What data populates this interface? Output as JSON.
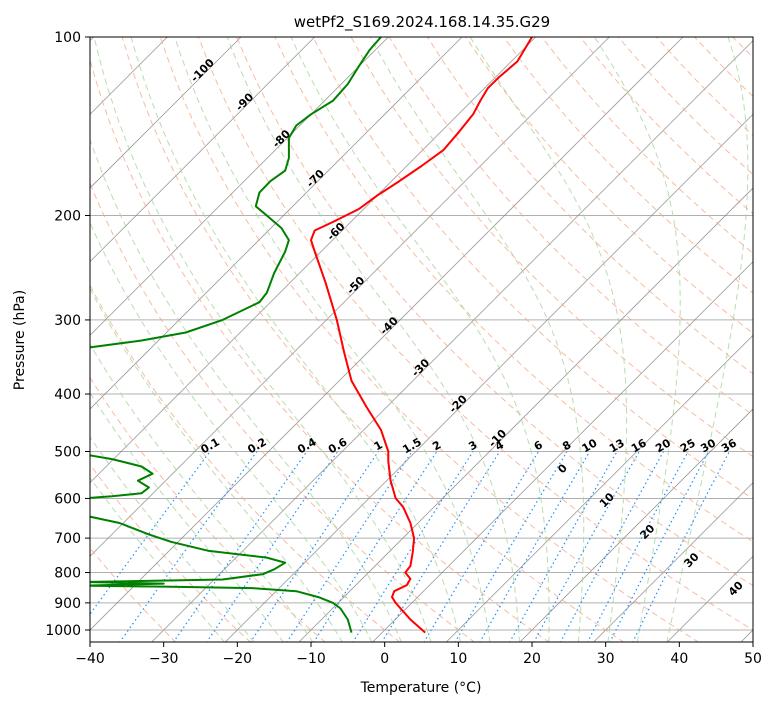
{
  "chart_data": {
    "type": "line",
    "subtype": "skew-t log-p sounding",
    "title": "wetPf2_S169.2024.168.14.35.G29",
    "xlabel": "Temperature (°C)",
    "ylabel": "Pressure (hPa)",
    "xlim": [
      -40,
      50
    ],
    "ylim": [
      1050,
      100
    ],
    "y_scale": "log",
    "grid": true,
    "x_ticks": [
      -40,
      -30,
      -20,
      -10,
      0,
      10,
      20,
      30,
      40,
      50
    ],
    "x_tick_labels": [
      "−40",
      "−30",
      "−20",
      "−10",
      "0",
      "10",
      "20",
      "30",
      "40",
      "50"
    ],
    "y_ticks": [
      1000,
      900,
      800,
      700,
      600,
      500,
      400,
      300,
      200,
      100
    ],
    "y_tick_labels": [
      "1000",
      "900",
      "800",
      "700",
      "600",
      "500",
      "400",
      "300",
      "200",
      "100"
    ],
    "colors": {
      "temperature": "#ff0000",
      "dewpoint": "#008000",
      "isotherm_labels": "#1f77b4",
      "mixing_ratio": "#1e90ff",
      "dry_adiabat": "#f4a582",
      "moist_adiabat": "#a6d49b",
      "skewed_isotherm": "#808080",
      "hodo_labels": "#d62728"
    },
    "isotherm_labels": [
      {
        "t": -100,
        "label": "-100"
      },
      {
        "t": -90,
        "label": "-90"
      },
      {
        "t": -80,
        "label": "-80"
      },
      {
        "t": -70,
        "label": "-70"
      },
      {
        "t": -60,
        "label": "-60"
      },
      {
        "t": -50,
        "label": "-50"
      },
      {
        "t": -40,
        "label": "-40"
      },
      {
        "t": -30,
        "label": "-30"
      },
      {
        "t": -20,
        "label": "-20"
      },
      {
        "t": -10,
        "label": "-10"
      }
    ],
    "mixing_ratio_labels": [
      "0.1",
      "0.2",
      "0.4",
      "0.6",
      "1",
      "1.5",
      "2",
      "3",
      "4",
      "6",
      "8",
      "10",
      "13",
      "16",
      "20",
      "25",
      "30",
      "36"
    ],
    "extra_labels": [
      "0",
      "10",
      "20",
      "30",
      "40"
    ],
    "series": [
      {
        "name": "",
        "role": "temperature",
        "points": [
          [
            5.5,
            1010
          ],
          [
            3.5,
            960
          ],
          [
            1.5,
            900
          ],
          [
            1.0,
            880
          ],
          [
            1.3,
            860
          ],
          [
            3.0,
            840
          ],
          [
            3.5,
            820
          ],
          [
            2.8,
            800
          ],
          [
            3.5,
            780
          ],
          [
            3.8,
            740
          ],
          [
            4.0,
            700
          ],
          [
            3.5,
            660
          ],
          [
            2.5,
            620
          ],
          [
            1.5,
            600
          ],
          [
            0.8,
            560
          ],
          [
            0.5,
            520
          ],
          [
            0.5,
            500
          ],
          [
            -0.5,
            460
          ],
          [
            -2.5,
            420
          ],
          [
            -4.5,
            380
          ],
          [
            -5.5,
            340
          ],
          [
            -6.5,
            300
          ],
          [
            -8.0,
            260
          ],
          [
            -9.5,
            230
          ],
          [
            -10.0,
            220
          ],
          [
            -9.5,
            212
          ],
          [
            -7.0,
            205
          ],
          [
            -3.5,
            195
          ],
          [
            -1.0,
            185
          ],
          [
            2.0,
            175
          ],
          [
            5.0,
            165
          ],
          [
            8.0,
            155
          ],
          [
            10.0,
            145
          ],
          [
            12.0,
            135
          ],
          [
            13.0,
            128
          ],
          [
            14.0,
            122
          ],
          [
            15.5,
            117
          ],
          [
            18.0,
            110
          ],
          [
            20.0,
            100
          ]
        ]
      },
      {
        "name": "",
        "role": "dewpoint",
        "points": [
          [
            -4.5,
            1010
          ],
          [
            -5.0,
            960
          ],
          [
            -6.0,
            920
          ],
          [
            -7.0,
            900
          ],
          [
            -9.0,
            880
          ],
          [
            -12.0,
            860
          ],
          [
            -18.0,
            850
          ],
          [
            -30.0,
            845
          ],
          [
            -41.0,
            842
          ],
          [
            -30.0,
            835
          ],
          [
            -41.0,
            830
          ],
          [
            -22.0,
            822
          ],
          [
            -16.5,
            805
          ],
          [
            -15.0,
            790
          ],
          [
            -13.5,
            770
          ],
          [
            -16.0,
            755
          ],
          [
            -24.0,
            735
          ],
          [
            -29.0,
            710
          ],
          [
            -32.0,
            690
          ],
          [
            -36.0,
            660
          ],
          [
            -41.0,
            640
          ],
          [
            -41.0,
            600
          ],
          [
            -37.0,
            595
          ],
          [
            -33.0,
            588
          ],
          [
            -32.0,
            575
          ],
          [
            -33.5,
            560
          ],
          [
            -31.5,
            545
          ],
          [
            -33.0,
            530
          ],
          [
            -37.0,
            515
          ],
          [
            -41.0,
            505
          ],
          [
            -41.0,
            335
          ],
          [
            -33.0,
            325
          ],
          [
            -27.0,
            315
          ],
          [
            -22.0,
            300
          ],
          [
            -17.0,
            280
          ],
          [
            -16.0,
            270
          ],
          [
            -15.0,
            250
          ],
          [
            -13.5,
            230
          ],
          [
            -13.0,
            220
          ],
          [
            -14.0,
            210
          ],
          [
            -16.0,
            200
          ],
          [
            -17.5,
            193
          ],
          [
            -17.0,
            183
          ],
          [
            -15.5,
            175
          ],
          [
            -13.5,
            168
          ],
          [
            -13.0,
            160
          ],
          [
            -13.0,
            148
          ],
          [
            -12.0,
            141
          ],
          [
            -10.0,
            135
          ],
          [
            -7.0,
            128
          ],
          [
            -5.0,
            120
          ],
          [
            -3.5,
            112
          ],
          [
            -2.0,
            105
          ],
          [
            -0.5,
            100
          ]
        ]
      }
    ]
  }
}
